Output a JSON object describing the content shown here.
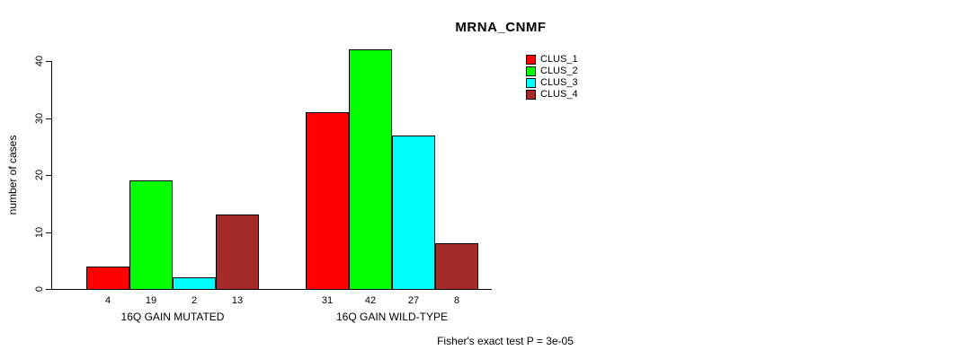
{
  "chart_data": {
    "type": "bar",
    "title": "MRNA_CNMF",
    "ylabel": "number of cases",
    "xlabel": "",
    "categories": [
      "16Q GAIN MUTATED",
      "16Q GAIN WILD-TYPE"
    ],
    "series": [
      {
        "name": "CLUS_1",
        "color": "#ff0000",
        "values": [
          4,
          31
        ]
      },
      {
        "name": "CLUS_2",
        "color": "#00ff00",
        "values": [
          19,
          42
        ]
      },
      {
        "name": "CLUS_3",
        "color": "#00ffff",
        "values": [
          2,
          27
        ]
      },
      {
        "name": "CLUS_4",
        "color": "#a52a2a",
        "values": [
          13,
          8
        ]
      }
    ],
    "yticks": [
      0,
      10,
      20,
      30,
      40
    ],
    "ylim": [
      0,
      42
    ],
    "grid": false,
    "show_bar_values": true,
    "legend_position": "top-right",
    "legend": [
      "CLUS_1",
      "CLUS_2",
      "CLUS_3",
      "CLUS_4"
    ],
    "annotation": "Fisher's exact test P = 3e-05"
  }
}
